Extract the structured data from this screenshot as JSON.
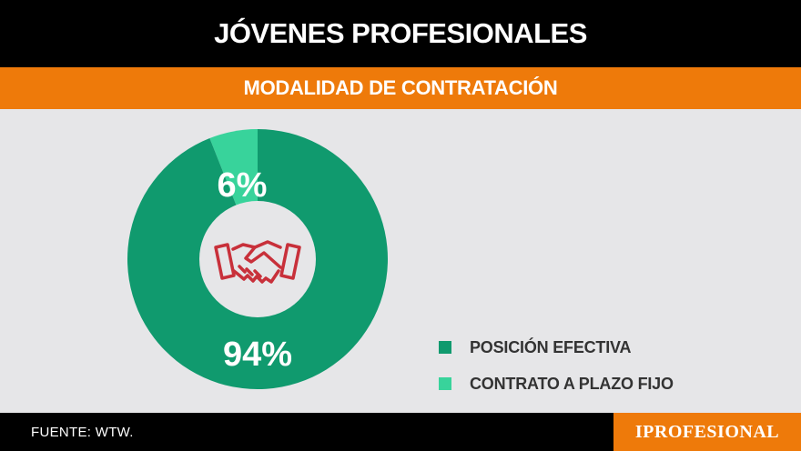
{
  "header": {
    "title": "JÓVENES PROFESIONALES"
  },
  "subheader": {
    "title": "MODALIDAD DE CONTRATACIÓN"
  },
  "colors": {
    "posicion": "#109a6e",
    "contrato": "#38d39b",
    "accent": "#ee7a0a",
    "icon": "#c8303a"
  },
  "center_icon": "handshake-icon",
  "chart_data": {
    "type": "pie",
    "variant": "donut",
    "slices": [
      {
        "label": "POSICIÓN EFECTIVA",
        "value": 94,
        "display": "94%",
        "color": "#109a6e"
      },
      {
        "label": "CONTRATO A PLAZO FIJO",
        "value": 6,
        "display": "6%",
        "color": "#38d39b"
      }
    ],
    "legend": {
      "position": "right"
    }
  },
  "legend": {
    "items": [
      {
        "label": "POSICIÓN EFECTIVA",
        "color": "#109a6e"
      },
      {
        "label": "CONTRATO A PLAZO FIJO",
        "color": "#38d39b"
      }
    ]
  },
  "footer": {
    "source": "FUENTE: WTW.",
    "brand": "IPROFESIONAL"
  }
}
